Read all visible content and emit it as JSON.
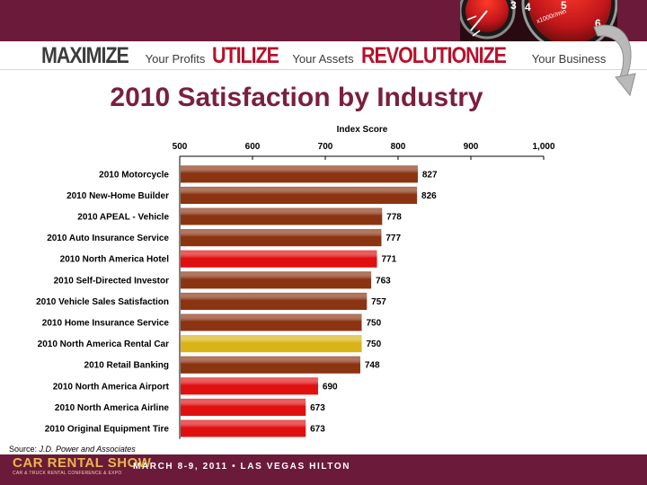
{
  "header": {
    "tagline": [
      {
        "word": "MAXIMIZE",
        "rest": "Your Profits"
      },
      {
        "word": "UTILIZE",
        "rest": "Your Assets"
      },
      {
        "word": "REVOLUTIONIZE",
        "rest": "Your Business"
      }
    ],
    "gauge_text": "x1000r/min"
  },
  "title": "2010 Satisfaction by Industry",
  "chart_data": {
    "type": "bar",
    "orientation": "horizontal",
    "title": "",
    "xlabel": "Index Score",
    "ylabel": "",
    "xlim": [
      500,
      1000
    ],
    "xticks": [
      "500",
      "600",
      "700",
      "800",
      "900",
      "1,000"
    ],
    "categories": [
      "2010 Motorcycle",
      "2010 New-Home Builder",
      "2010 APEAL - Vehicle",
      "2010 Auto Insurance Service",
      "2010 North America Hotel",
      "2010 Self-Directed Investor",
      "2010 Vehicle Sales Satisfaction",
      "2010 Home Insurance Service",
      "2010 North America Rental Car",
      "2010 Retail Banking",
      "2010 North America Airport",
      "2010 North America Airline",
      "2010 Original Equipment Tire"
    ],
    "values": [
      827,
      826,
      778,
      777,
      771,
      763,
      757,
      750,
      750,
      748,
      690,
      673,
      673
    ],
    "value_labels": [
      "827",
      "826",
      "778",
      "777",
      "771",
      "763",
      "757",
      "750",
      "750",
      "748",
      "690",
      "673",
      "673"
    ],
    "colors": [
      "#8b3412",
      "#8b3412",
      "#8b3412",
      "#8b3412",
      "#e01010",
      "#8b3412",
      "#8b3412",
      "#8b3412",
      "#d8b418",
      "#8b3412",
      "#e01010",
      "#e01010",
      "#e01010"
    ],
    "grid": false,
    "legend": "none"
  },
  "source": {
    "label": "Source:",
    "text": "J.D. Power and Associates"
  },
  "footer": {
    "logo_main": "CAR RENTAL SHOW",
    "logo_sub": "CAR & TRUCK RENTAL CONFERENCE & EXPO",
    "event": "MARCH 8-9, 2011 • LAS VEGAS HILTON"
  },
  "colors": {
    "brand": "#6b1a3a",
    "accent": "#b8112b",
    "title": "#7a1f3c"
  }
}
